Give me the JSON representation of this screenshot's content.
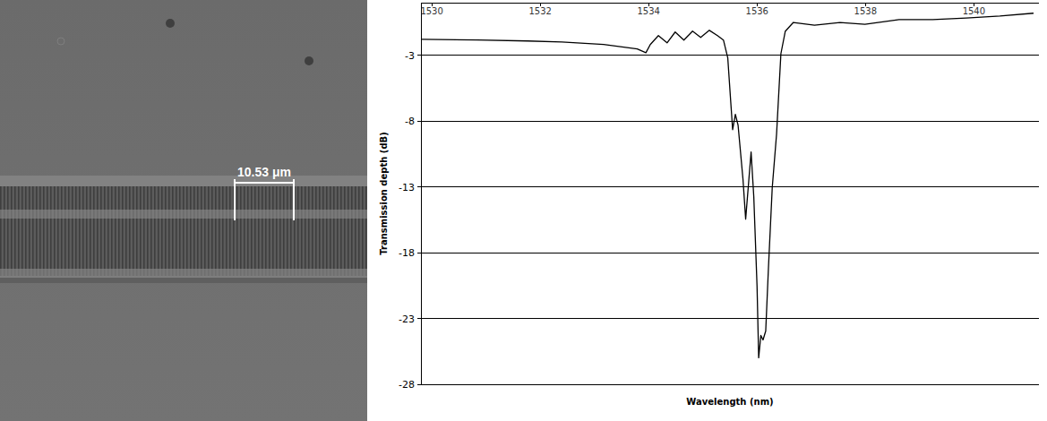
{
  "chart_data": {
    "type": "line",
    "x_label": "Wavelength (nm)",
    "y_label": "Transmission depth (dB)",
    "color": "#000000",
    "grid": true,
    "xlim": [
      1529.8,
      1541.2
    ],
    "ylim": [
      -28,
      1
    ],
    "xticks": [
      1530,
      1532,
      1534,
      1536,
      1538,
      1540
    ],
    "yticks": [
      -3,
      -8,
      -13,
      -18,
      -23,
      -28
    ],
    "x": [
      1529.8,
      1530.84,
      1531.77,
      1532.4,
      1533.17,
      1533.79,
      1533.95,
      1534.03,
      1534.18,
      1534.34,
      1534.49,
      1534.65,
      1534.81,
      1534.96,
      1535.12,
      1535.27,
      1535.38,
      1535.46,
      1535.51,
      1535.55,
      1535.6,
      1535.65,
      1535.74,
      1535.79,
      1535.85,
      1535.89,
      1535.94,
      1536.0,
      1536.03,
      1536.07,
      1536.11,
      1536.16,
      1536.21,
      1536.28,
      1536.36,
      1536.44,
      1536.52,
      1536.67,
      1537.06,
      1537.53,
      1537.99,
      1538.62,
      1539.24,
      1539.86,
      1540.48,
      1541.1
    ],
    "values": [
      -1.78,
      -1.84,
      -1.91,
      -1.98,
      -2.18,
      -2.52,
      -2.8,
      -2.18,
      -1.5,
      -2.05,
      -1.23,
      -1.84,
      -1.16,
      -1.64,
      -1.1,
      -1.5,
      -1.84,
      -3.2,
      -6.27,
      -8.65,
      -7.49,
      -8.31,
      -12.39,
      -15.45,
      -12.39,
      -10.35,
      -13.75,
      -20.55,
      -25.99,
      -24.29,
      -24.63,
      -23.95,
      -19.19,
      -13.07,
      -8.99,
      -2.88,
      -1.18,
      -0.5,
      -0.71,
      -0.5,
      -0.64,
      -0.29,
      -0.29,
      -0.16,
      -0.01,
      0.2
    ]
  },
  "micrograph": {
    "scale_bar_label": "10.53 μm"
  }
}
